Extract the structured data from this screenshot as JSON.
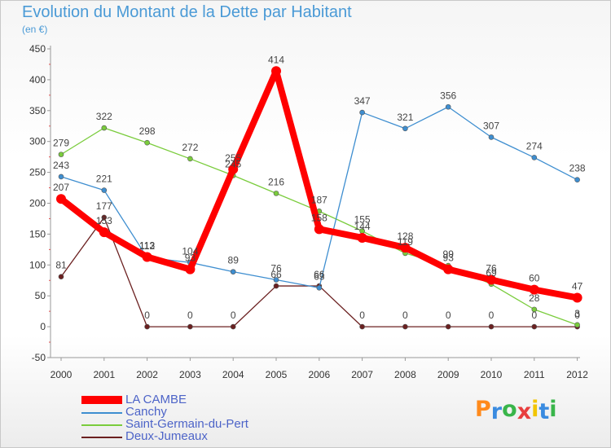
{
  "title": "Evolution du Montant de la Dette par Habitant",
  "unit_label": "(en €)",
  "logo_text": "Proxiti",
  "chart_data": {
    "type": "line",
    "title": "Evolution du Montant de la Dette par Habitant",
    "ylabel": "(en €)",
    "xlabel": "",
    "x": [
      "2000",
      "2001",
      "2002",
      "2003",
      "2004",
      "2005",
      "2006",
      "2007",
      "2008",
      "2009",
      "2010",
      "2011",
      "2012"
    ],
    "ylim": [
      -50,
      450
    ],
    "yticks": [
      -50,
      0,
      50,
      100,
      150,
      200,
      250,
      300,
      350,
      400,
      450
    ],
    "grid": false,
    "legend": "bottom-left",
    "series": [
      {
        "name": "LA CAMBE",
        "color": "#ff0000",
        "values": [
          207,
          153,
          113,
          93,
          255,
          414,
          158,
          144,
          128,
          93,
          76,
          60,
          47
        ]
      },
      {
        "name": "Canchy",
        "color": "#3e8ed0",
        "values": [
          243,
          221,
          112,
          104,
          89,
          76,
          63,
          347,
          321,
          356,
          307,
          274,
          238
        ]
      },
      {
        "name": "Saint-Germain-du-Pert",
        "color": "#7acc3c",
        "values": [
          279,
          322,
          298,
          272,
          245,
          216,
          187,
          155,
          119,
          99,
          69,
          28,
          3
        ]
      },
      {
        "name": "Deux-Jumeaux",
        "color": "#6b2020",
        "values": [
          81,
          177,
          0,
          0,
          0,
          66,
          66,
          0,
          0,
          0,
          0,
          0,
          0
        ]
      }
    ]
  }
}
